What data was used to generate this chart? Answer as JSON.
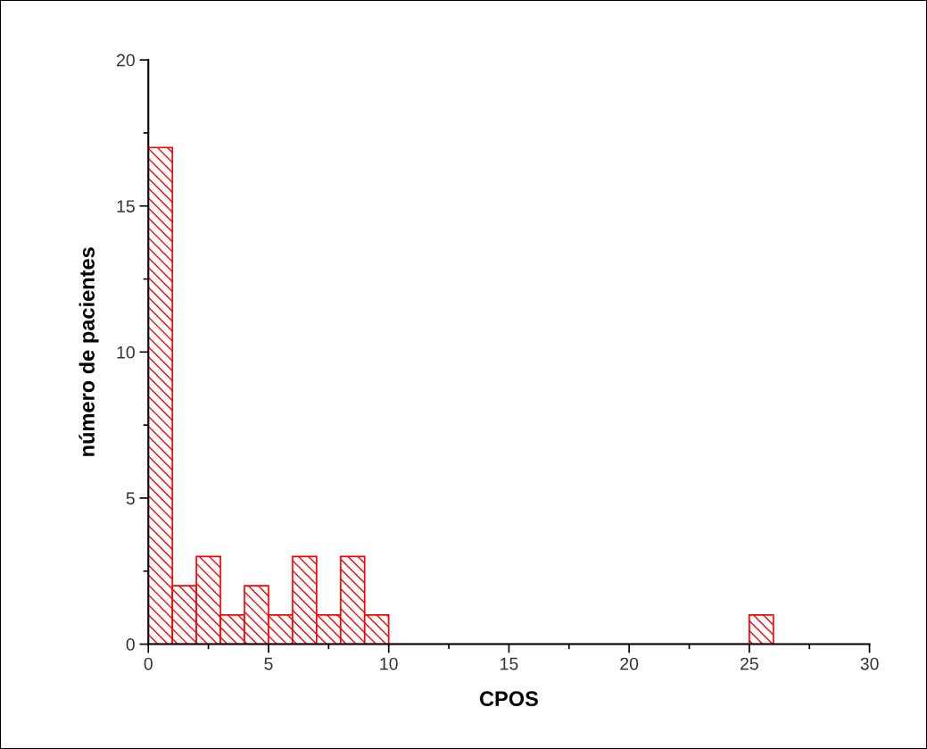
{
  "chart_data": {
    "type": "histogram",
    "xlabel": "CPOS",
    "ylabel": "número de pacientes",
    "bins": [
      0,
      1,
      2,
      3,
      4,
      5,
      6,
      7,
      8,
      9,
      10,
      11,
      12,
      13,
      14,
      15,
      16,
      17,
      18,
      19,
      20,
      21,
      22,
      23,
      24,
      25,
      26
    ],
    "values": [
      17,
      2,
      3,
      1,
      2,
      1,
      3,
      1,
      3,
      1,
      0,
      0,
      0,
      0,
      0,
      0,
      0,
      0,
      0,
      0,
      0,
      0,
      0,
      0,
      0,
      1
    ],
    "color": "#ff0000",
    "xlim": [
      0,
      30
    ],
    "xticks": [
      0,
      5,
      10,
      15,
      20,
      25,
      30
    ],
    "ylim": [
      0,
      20
    ],
    "yticks": [
      0,
      5,
      10,
      15,
      20
    ],
    "grid": false,
    "legend": false
  }
}
